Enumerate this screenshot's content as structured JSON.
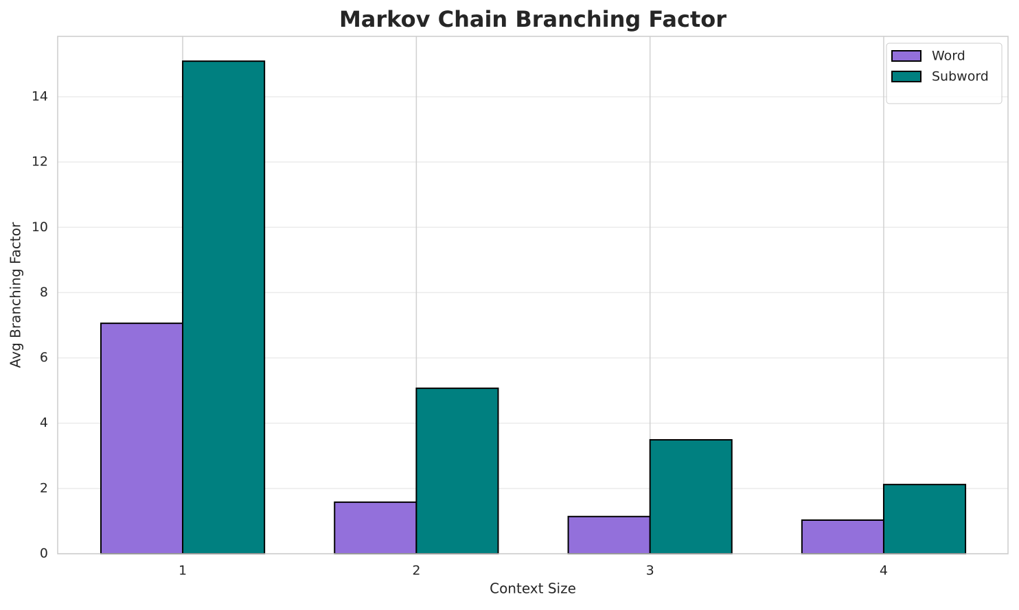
{
  "chart_data": {
    "type": "bar",
    "title": "Markov Chain Branching Factor",
    "x_label": "Context Size",
    "y_label": "Avg Branching Factor",
    "x": [
      1,
      2,
      3,
      4
    ],
    "series": [
      {
        "name": "Word",
        "color": "#9370db",
        "values": [
          7.06,
          1.58,
          1.14,
          1.03
        ]
      },
      {
        "name": "Subword",
        "color": "#008080",
        "values": [
          15.09,
          5.07,
          3.49,
          2.12
        ]
      }
    ],
    "xlim": [
      0.465,
      4.532
    ],
    "xticks": [
      1,
      2,
      3,
      4
    ],
    "ylim": [
      0,
      15.85
    ],
    "yticks": [
      0,
      2,
      4,
      6,
      8,
      10,
      12,
      14
    ],
    "bar_width": 0.35,
    "grid": true,
    "legend": "upper right"
  }
}
